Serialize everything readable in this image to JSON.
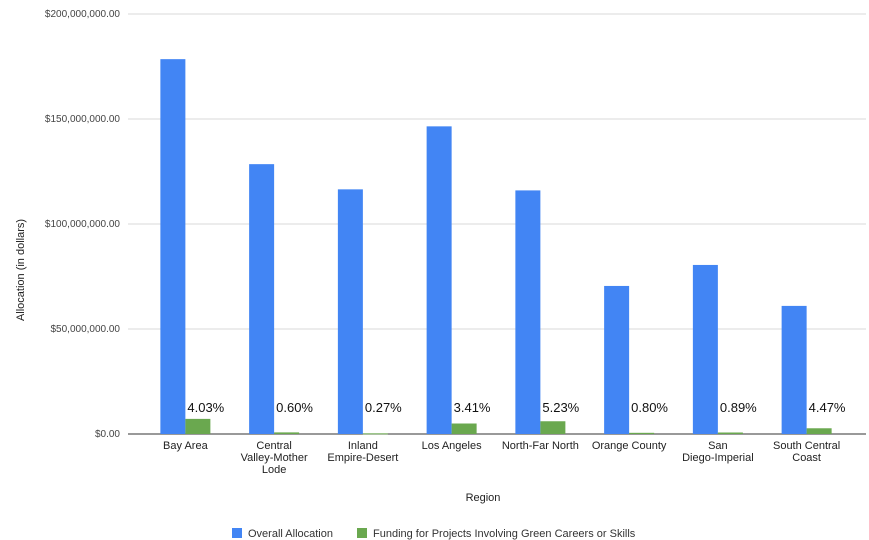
{
  "chart_data": {
    "type": "bar",
    "title": "",
    "xlabel": "Region",
    "ylabel": "Allocation (in dollars)",
    "ylim": [
      0,
      200000000
    ],
    "yticks": [
      0,
      50000000,
      100000000,
      150000000,
      200000000
    ],
    "ytick_labels": [
      "$0.00",
      "$50,000,000.00",
      "$100,000,000.00",
      "$150,000,000.00",
      "$200,000,000.00"
    ],
    "grid": true,
    "legend_position": "bottom",
    "categories": [
      [
        "Bay Area"
      ],
      [
        "Central",
        "Valley-Mother",
        "Lode"
      ],
      [
        "Inland",
        "Empire-Desert"
      ],
      [
        "Los Angeles"
      ],
      [
        "North-Far North"
      ],
      [
        "Orange County"
      ],
      [
        "San",
        "Diego-Imperial"
      ],
      [
        "South Central",
        "Coast"
      ]
    ],
    "series": [
      {
        "name": "Overall Allocation",
        "color": "#4285f4",
        "values": [
          178500000,
          128500000,
          116500000,
          146500000,
          116000000,
          70500000,
          80500000,
          61000000
        ]
      },
      {
        "name": "Funding for Projects Involving Green Careers or Skills",
        "color": "#6aa84f",
        "values": [
          7200000,
          770000,
          315000,
          5000000,
          6070000,
          565000,
          715000,
          2730000
        ],
        "data_labels": [
          "4.03%",
          "0.60%",
          "0.27%",
          "3.41%",
          "5.23%",
          "0.80%",
          "0.89%",
          "4.47%"
        ]
      }
    ]
  }
}
